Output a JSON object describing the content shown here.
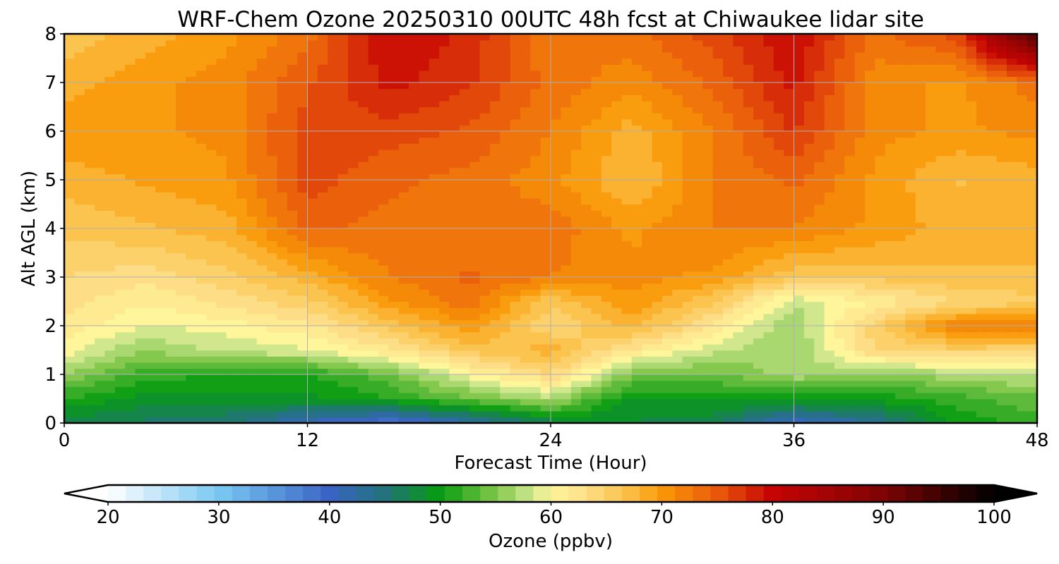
{
  "chart_data": {
    "type": "heatmap",
    "title": "WRF-Chem Ozone  20250310 00UTC 48h fcst at Chiwaukee lidar site",
    "xlabel": "Forecast Time (Hour)",
    "ylabel": "Alt AGL (km)",
    "xlim": [
      0,
      48
    ],
    "ylim": [
      0,
      8
    ],
    "x_ticks": [
      "0",
      "12",
      "24",
      "36",
      "48"
    ],
    "y_ticks": [
      "0",
      "1",
      "2",
      "3",
      "4",
      "5",
      "6",
      "7",
      "8"
    ],
    "grid": true,
    "value_unit": "ppbv",
    "x": [
      0,
      4,
      8,
      12,
      16,
      20,
      24,
      28,
      32,
      36,
      40,
      44,
      48
    ],
    "y": [
      0,
      0.5,
      1,
      1.5,
      2,
      2.5,
      3,
      4,
      5,
      6,
      7,
      8
    ],
    "z": [
      [
        47,
        46,
        45,
        41,
        38,
        42,
        47,
        48,
        47,
        40,
        43,
        50,
        52
      ],
      [
        51,
        49,
        49,
        49,
        51,
        54,
        57,
        49,
        50,
        50,
        50,
        52,
        54
      ],
      [
        56,
        52,
        51,
        51,
        54,
        60,
        64,
        55,
        54,
        57,
        55,
        57,
        58
      ],
      [
        60,
        56,
        58,
        59,
        62,
        66,
        68,
        62,
        58,
        56,
        64,
        65,
        64
      ],
      [
        62,
        59,
        60,
        62,
        66,
        70,
        64,
        68,
        62,
        56,
        65,
        72,
        73
      ],
      [
        63,
        61,
        63,
        65,
        70,
        73,
        66,
        70,
        66,
        58,
        61,
        64,
        65
      ],
      [
        64,
        63,
        65,
        68,
        72,
        74,
        72,
        71,
        70,
        66,
        66,
        67,
        67
      ],
      [
        66,
        67,
        68,
        74,
        73,
        72,
        73,
        70,
        72,
        72,
        70,
        68,
        68
      ],
      [
        68,
        69,
        70,
        76,
        74,
        73,
        71,
        67,
        72,
        74,
        70,
        67,
        68
      ],
      [
        70,
        70,
        71,
        76,
        76,
        75,
        72,
        68,
        72,
        77,
        71,
        70,
        71
      ],
      [
        68,
        70,
        71,
        75,
        79,
        77,
        73,
        71,
        74,
        79,
        71,
        70,
        73
      ],
      [
        66,
        68,
        70,
        73,
        80,
        78,
        72,
        73,
        76,
        80,
        73,
        76,
        95
      ]
    ],
    "colorbar": {
      "label": "Ozone  (ppbv)",
      "min": 20,
      "max": 100,
      "ticks": [
        "20",
        "30",
        "40",
        "50",
        "60",
        "70",
        "80",
        "90",
        "100"
      ],
      "extend": "both",
      "stops": [
        [
          20,
          "#ffffff"
        ],
        [
          30,
          "#79c8f2"
        ],
        [
          40,
          "#3a64c4"
        ],
        [
          45,
          "#22737a"
        ],
        [
          50,
          "#079c10"
        ],
        [
          55,
          "#7fc64a"
        ],
        [
          58,
          "#c6e48a"
        ],
        [
          60,
          "#fff59a"
        ],
        [
          63,
          "#fde08a"
        ],
        [
          67,
          "#fbbf45"
        ],
        [
          70,
          "#f99807"
        ],
        [
          75,
          "#e9590c"
        ],
        [
          80,
          "#c60404"
        ],
        [
          90,
          "#7e0404"
        ],
        [
          100,
          "#000000"
        ]
      ]
    }
  }
}
